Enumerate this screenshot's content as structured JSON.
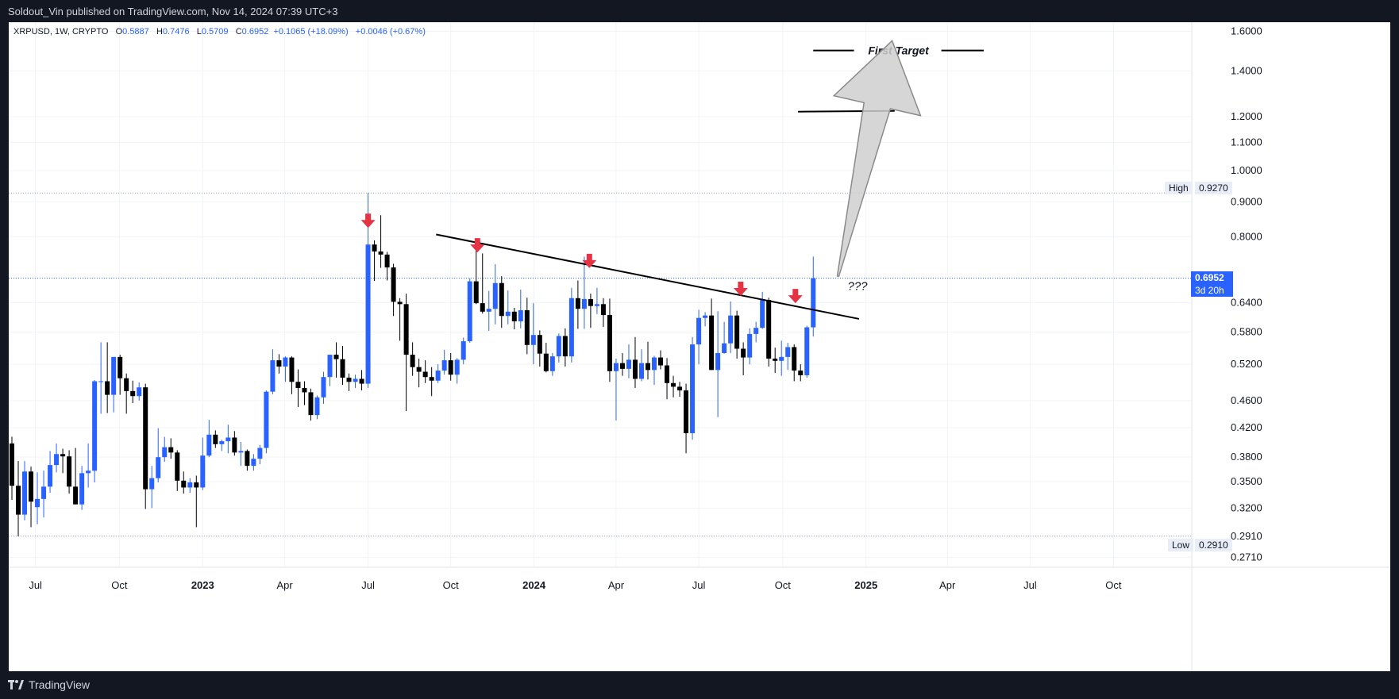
{
  "header": {
    "publisher_line": "Soldout_Vin published on TradingView.com, Nov 14, 2024 07:39 UTC+3"
  },
  "legend": {
    "symbol": "XRPUSD, 1W, CRYPTO",
    "open_label": "O",
    "open": "0.5887",
    "high_label": "H",
    "high": "0.7476",
    "low_label": "L",
    "low": "0.5709",
    "close_label": "C",
    "close": "0.6952",
    "change": "+0.1065 (+18.09%)",
    "change2": "+0.0046 (+0.67%)"
  },
  "price_tags": {
    "high_label": "High",
    "high_value": "0.9270",
    "low_label": "Low",
    "low_value": "0.2910",
    "last_value": "0.6952",
    "countdown": "3d 20h"
  },
  "annotations": {
    "first_target": "First Target",
    "question": "???"
  },
  "footer": {
    "brand": "TradingView"
  },
  "colors": {
    "up": "#2962ff",
    "down": "#000000",
    "accent": "#2962ff",
    "arrow_marker": "#e53344",
    "background": "#ffffff",
    "frame": "#131722"
  },
  "chart_data": {
    "type": "candlestick",
    "symbol": "XRPUSD",
    "interval": "1W",
    "y_scale": "log",
    "ylim": [
      0.262,
      1.65
    ],
    "y_ticks": [
      0.271,
      0.291,
      0.32,
      0.35,
      0.38,
      0.42,
      0.46,
      0.52,
      0.58,
      0.64,
      0.6952,
      0.8,
      0.9,
      1.0,
      1.1,
      1.2,
      1.4,
      1.6
    ],
    "x_tick_labels": [
      {
        "label": "Jul",
        "week": 3.7,
        "bold": false
      },
      {
        "label": "Oct",
        "week": 16.9,
        "bold": false
      },
      {
        "label": "2023",
        "week": 30.0,
        "bold": true
      },
      {
        "label": "Apr",
        "week": 42.9,
        "bold": false
      },
      {
        "label": "Jul",
        "week": 56.0,
        "bold": false
      },
      {
        "label": "Oct",
        "week": 69.0,
        "bold": false
      },
      {
        "label": "2024",
        "week": 82.1,
        "bold": true
      },
      {
        "label": "Apr",
        "week": 95.0,
        "bold": false
      },
      {
        "label": "Jul",
        "week": 108.0,
        "bold": false
      },
      {
        "label": "Oct",
        "week": 121.2,
        "bold": false
      },
      {
        "label": "2025",
        "week": 134.3,
        "bold": true
      },
      {
        "label": "Apr",
        "week": 147.1,
        "bold": false
      },
      {
        "label": "Jul",
        "week": 160.1,
        "bold": false
      },
      {
        "label": "Oct",
        "week": 173.2,
        "bold": false
      }
    ],
    "candles": [
      {
        "o": 0.398,
        "h": 0.407,
        "l": 0.329,
        "c": 0.345
      },
      {
        "o": 0.345,
        "h": 0.375,
        "l": 0.291,
        "c": 0.313
      },
      {
        "o": 0.313,
        "h": 0.375,
        "l": 0.307,
        "c": 0.362
      },
      {
        "o": 0.362,
        "h": 0.368,
        "l": 0.3,
        "c": 0.327
      },
      {
        "o": 0.321,
        "h": 0.361,
        "l": 0.303,
        "c": 0.33
      },
      {
        "o": 0.33,
        "h": 0.363,
        "l": 0.31,
        "c": 0.344
      },
      {
        "o": 0.344,
        "h": 0.388,
        "l": 0.337,
        "c": 0.37
      },
      {
        "o": 0.37,
        "h": 0.398,
        "l": 0.361,
        "c": 0.384
      },
      {
        "o": 0.384,
        "h": 0.391,
        "l": 0.36,
        "c": 0.381
      },
      {
        "o": 0.381,
        "h": 0.389,
        "l": 0.336,
        "c": 0.344
      },
      {
        "o": 0.344,
        "h": 0.392,
        "l": 0.324,
        "c": 0.324
      },
      {
        "o": 0.324,
        "h": 0.369,
        "l": 0.318,
        "c": 0.36
      },
      {
        "o": 0.36,
        "h": 0.398,
        "l": 0.343,
        "c": 0.363
      },
      {
        "o": 0.363,
        "h": 0.493,
        "l": 0.349,
        "c": 0.491
      },
      {
        "o": 0.491,
        "h": 0.56,
        "l": 0.44,
        "c": 0.491
      },
      {
        "o": 0.491,
        "h": 0.56,
        "l": 0.441,
        "c": 0.469
      },
      {
        "o": 0.469,
        "h": 0.533,
        "l": 0.442,
        "c": 0.533
      },
      {
        "o": 0.533,
        "h": 0.537,
        "l": 0.469,
        "c": 0.496
      },
      {
        "o": 0.496,
        "h": 0.504,
        "l": 0.44,
        "c": 0.475
      },
      {
        "o": 0.475,
        "h": 0.492,
        "l": 0.456,
        "c": 0.467
      },
      {
        "o": 0.467,
        "h": 0.489,
        "l": 0.46,
        "c": 0.481
      },
      {
        "o": 0.481,
        "h": 0.487,
        "l": 0.319,
        "c": 0.341
      },
      {
        "o": 0.341,
        "h": 0.369,
        "l": 0.32,
        "c": 0.354
      },
      {
        "o": 0.354,
        "h": 0.419,
        "l": 0.349,
        "c": 0.38
      },
      {
        "o": 0.38,
        "h": 0.407,
        "l": 0.374,
        "c": 0.393
      },
      {
        "o": 0.393,
        "h": 0.405,
        "l": 0.378,
        "c": 0.386
      },
      {
        "o": 0.386,
        "h": 0.389,
        "l": 0.339,
        "c": 0.351
      },
      {
        "o": 0.351,
        "h": 0.362,
        "l": 0.336,
        "c": 0.343
      },
      {
        "o": 0.343,
        "h": 0.354,
        "l": 0.337,
        "c": 0.349
      },
      {
        "o": 0.349,
        "h": 0.357,
        "l": 0.3,
        "c": 0.343
      },
      {
        "o": 0.343,
        "h": 0.406,
        "l": 0.34,
        "c": 0.382
      },
      {
        "o": 0.382,
        "h": 0.431,
        "l": 0.38,
        "c": 0.41
      },
      {
        "o": 0.41,
        "h": 0.416,
        "l": 0.392,
        "c": 0.397
      },
      {
        "o": 0.397,
        "h": 0.403,
        "l": 0.388,
        "c": 0.401
      },
      {
        "o": 0.401,
        "h": 0.424,
        "l": 0.385,
        "c": 0.406
      },
      {
        "o": 0.406,
        "h": 0.415,
        "l": 0.382,
        "c": 0.386
      },
      {
        "o": 0.386,
        "h": 0.4,
        "l": 0.369,
        "c": 0.388
      },
      {
        "o": 0.388,
        "h": 0.39,
        "l": 0.363,
        "c": 0.369
      },
      {
        "o": 0.369,
        "h": 0.384,
        "l": 0.363,
        "c": 0.378
      },
      {
        "o": 0.378,
        "h": 0.396,
        "l": 0.371,
        "c": 0.392
      },
      {
        "o": 0.392,
        "h": 0.476,
        "l": 0.385,
        "c": 0.474
      },
      {
        "o": 0.474,
        "h": 0.547,
        "l": 0.47,
        "c": 0.527
      },
      {
        "o": 0.527,
        "h": 0.538,
        "l": 0.504,
        "c": 0.516
      },
      {
        "o": 0.516,
        "h": 0.534,
        "l": 0.49,
        "c": 0.532
      },
      {
        "o": 0.532,
        "h": 0.534,
        "l": 0.47,
        "c": 0.49
      },
      {
        "o": 0.49,
        "h": 0.511,
        "l": 0.45,
        "c": 0.48
      },
      {
        "o": 0.48,
        "h": 0.491,
        "l": 0.453,
        "c": 0.473
      },
      {
        "o": 0.473,
        "h": 0.479,
        "l": 0.43,
        "c": 0.438
      },
      {
        "o": 0.438,
        "h": 0.468,
        "l": 0.432,
        "c": 0.465
      },
      {
        "o": 0.465,
        "h": 0.507,
        "l": 0.455,
        "c": 0.498
      },
      {
        "o": 0.498,
        "h": 0.536,
        "l": 0.483,
        "c": 0.537
      },
      {
        "o": 0.537,
        "h": 0.56,
        "l": 0.497,
        "c": 0.529
      },
      {
        "o": 0.529,
        "h": 0.553,
        "l": 0.485,
        "c": 0.497
      },
      {
        "o": 0.497,
        "h": 0.504,
        "l": 0.475,
        "c": 0.49
      },
      {
        "o": 0.49,
        "h": 0.502,
        "l": 0.48,
        "c": 0.495
      },
      {
        "o": 0.495,
        "h": 0.51,
        "l": 0.476,
        "c": 0.487
      },
      {
        "o": 0.487,
        "h": 0.927,
        "l": 0.48,
        "c": 0.779
      },
      {
        "o": 0.779,
        "h": 0.79,
        "l": 0.689,
        "c": 0.761
      },
      {
        "o": 0.761,
        "h": 0.86,
        "l": 0.72,
        "c": 0.753
      },
      {
        "o": 0.753,
        "h": 0.76,
        "l": 0.69,
        "c": 0.721
      },
      {
        "o": 0.721,
        "h": 0.73,
        "l": 0.612,
        "c": 0.642
      },
      {
        "o": 0.642,
        "h": 0.65,
        "l": 0.563,
        "c": 0.637
      },
      {
        "o": 0.637,
        "h": 0.66,
        "l": 0.444,
        "c": 0.537
      },
      {
        "o": 0.537,
        "h": 0.56,
        "l": 0.5,
        "c": 0.515
      },
      {
        "o": 0.515,
        "h": 0.53,
        "l": 0.481,
        "c": 0.507
      },
      {
        "o": 0.507,
        "h": 0.527,
        "l": 0.488,
        "c": 0.498
      },
      {
        "o": 0.498,
        "h": 0.515,
        "l": 0.467,
        "c": 0.492
      },
      {
        "o": 0.492,
        "h": 0.52,
        "l": 0.488,
        "c": 0.509
      },
      {
        "o": 0.509,
        "h": 0.546,
        "l": 0.502,
        "c": 0.527
      },
      {
        "o": 0.527,
        "h": 0.54,
        "l": 0.492,
        "c": 0.502
      },
      {
        "o": 0.502,
        "h": 0.531,
        "l": 0.487,
        "c": 0.528
      },
      {
        "o": 0.528,
        "h": 0.569,
        "l": 0.52,
        "c": 0.562
      },
      {
        "o": 0.562,
        "h": 0.695,
        "l": 0.559,
        "c": 0.688
      },
      {
        "o": 0.688,
        "h": 0.787,
        "l": 0.637,
        "c": 0.639
      },
      {
        "o": 0.639,
        "h": 0.756,
        "l": 0.617,
        "c": 0.621
      },
      {
        "o": 0.621,
        "h": 0.666,
        "l": 0.582,
        "c": 0.627
      },
      {
        "o": 0.627,
        "h": 0.729,
        "l": 0.595,
        "c": 0.684
      },
      {
        "o": 0.684,
        "h": 0.7,
        "l": 0.588,
        "c": 0.612
      },
      {
        "o": 0.612,
        "h": 0.667,
        "l": 0.595,
        "c": 0.621
      },
      {
        "o": 0.621,
        "h": 0.629,
        "l": 0.585,
        "c": 0.601
      },
      {
        "o": 0.601,
        "h": 0.669,
        "l": 0.587,
        "c": 0.624
      },
      {
        "o": 0.624,
        "h": 0.651,
        "l": 0.538,
        "c": 0.555
      },
      {
        "o": 0.555,
        "h": 0.639,
        "l": 0.52,
        "c": 0.574
      },
      {
        "o": 0.574,
        "h": 0.583,
        "l": 0.516,
        "c": 0.539
      },
      {
        "o": 0.539,
        "h": 0.559,
        "l": 0.506,
        "c": 0.508
      },
      {
        "o": 0.508,
        "h": 0.54,
        "l": 0.5,
        "c": 0.534
      },
      {
        "o": 0.534,
        "h": 0.577,
        "l": 0.523,
        "c": 0.572
      },
      {
        "o": 0.572,
        "h": 0.587,
        "l": 0.516,
        "c": 0.534
      },
      {
        "o": 0.534,
        "h": 0.673,
        "l": 0.523,
        "c": 0.65
      },
      {
        "o": 0.65,
        "h": 0.69,
        "l": 0.586,
        "c": 0.627
      },
      {
        "o": 0.627,
        "h": 0.748,
        "l": 0.586,
        "c": 0.648
      },
      {
        "o": 0.648,
        "h": 0.66,
        "l": 0.588,
        "c": 0.633
      },
      {
        "o": 0.633,
        "h": 0.673,
        "l": 0.616,
        "c": 0.637
      },
      {
        "o": 0.637,
        "h": 0.65,
        "l": 0.59,
        "c": 0.614
      },
      {
        "o": 0.614,
        "h": 0.649,
        "l": 0.49,
        "c": 0.508
      },
      {
        "o": 0.508,
        "h": 0.53,
        "l": 0.43,
        "c": 0.522
      },
      {
        "o": 0.522,
        "h": 0.54,
        "l": 0.5,
        "c": 0.512
      },
      {
        "o": 0.512,
        "h": 0.556,
        "l": 0.496,
        "c": 0.528
      },
      {
        "o": 0.528,
        "h": 0.57,
        "l": 0.48,
        "c": 0.495
      },
      {
        "o": 0.495,
        "h": 0.547,
        "l": 0.491,
        "c": 0.522
      },
      {
        "o": 0.522,
        "h": 0.561,
        "l": 0.494,
        "c": 0.51
      },
      {
        "o": 0.51,
        "h": 0.535,
        "l": 0.485,
        "c": 0.532
      },
      {
        "o": 0.532,
        "h": 0.545,
        "l": 0.511,
        "c": 0.518
      },
      {
        "o": 0.518,
        "h": 0.531,
        "l": 0.462,
        "c": 0.488
      },
      {
        "o": 0.488,
        "h": 0.5,
        "l": 0.465,
        "c": 0.482
      },
      {
        "o": 0.482,
        "h": 0.49,
        "l": 0.466,
        "c": 0.476
      },
      {
        "o": 0.476,
        "h": 0.487,
        "l": 0.385,
        "c": 0.412
      },
      {
        "o": 0.412,
        "h": 0.57,
        "l": 0.403,
        "c": 0.556
      },
      {
        "o": 0.556,
        "h": 0.625,
        "l": 0.52,
        "c": 0.608
      },
      {
        "o": 0.608,
        "h": 0.62,
        "l": 0.591,
        "c": 0.613
      },
      {
        "o": 0.613,
        "h": 0.649,
        "l": 0.51,
        "c": 0.51
      },
      {
        "o": 0.51,
        "h": 0.622,
        "l": 0.435,
        "c": 0.54
      },
      {
        "o": 0.54,
        "h": 0.6,
        "l": 0.539,
        "c": 0.558
      },
      {
        "o": 0.558,
        "h": 0.643,
        "l": 0.54,
        "c": 0.613
      },
      {
        "o": 0.613,
        "h": 0.623,
        "l": 0.53,
        "c": 0.548
      },
      {
        "o": 0.548,
        "h": 0.56,
        "l": 0.501,
        "c": 0.532
      },
      {
        "o": 0.532,
        "h": 0.587,
        "l": 0.52,
        "c": 0.576
      },
      {
        "o": 0.576,
        "h": 0.6,
        "l": 0.56,
        "c": 0.588
      },
      {
        "o": 0.588,
        "h": 0.664,
        "l": 0.586,
        "c": 0.646
      },
      {
        "o": 0.646,
        "h": 0.651,
        "l": 0.516,
        "c": 0.53
      },
      {
        "o": 0.53,
        "h": 0.55,
        "l": 0.505,
        "c": 0.526
      },
      {
        "o": 0.526,
        "h": 0.563,
        "l": 0.5,
        "c": 0.533
      },
      {
        "o": 0.533,
        "h": 0.559,
        "l": 0.51,
        "c": 0.551
      },
      {
        "o": 0.551,
        "h": 0.556,
        "l": 0.491,
        "c": 0.509
      },
      {
        "o": 0.509,
        "h": 0.52,
        "l": 0.491,
        "c": 0.501
      },
      {
        "o": 0.501,
        "h": 0.592,
        "l": 0.497,
        "c": 0.589
      },
      {
        "o": 0.589,
        "h": 0.748,
        "l": 0.571,
        "c": 0.695
      }
    ],
    "trendline": {
      "from": {
        "week": 66.7,
        "price": 0.806
      },
      "to": {
        "week": 133.2,
        "price": 0.606
      }
    },
    "level_line": {
      "from_week": 123.6,
      "to_week": 138.8,
      "price": 1.22
    },
    "target_line": {
      "from_week": 126.0,
      "to_week": 152.8,
      "price": 1.5
    },
    "arrow_markers": [
      {
        "week": 56.0,
        "price": 0.842
      },
      {
        "week": 73.2,
        "price": 0.775
      },
      {
        "week": 90.8,
        "price": 0.735
      },
      {
        "week": 114.6,
        "price": 0.669
      },
      {
        "week": 123.2,
        "price": 0.653
      }
    ],
    "forecast_arrow": {
      "tail": {
        "week": 129.9,
        "price": 0.7
      },
      "head": {
        "week": 138.4,
        "price": 1.55
      }
    },
    "high_line": 0.927,
    "low_line": 0.291,
    "last_price": 0.6952
  }
}
